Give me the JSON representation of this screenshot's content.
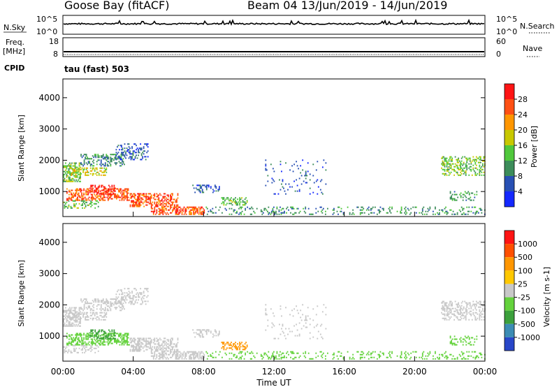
{
  "header": {
    "station": "Goose Bay (fitACF)",
    "beam_date": "Beam 04  13/Jun/2019 - 14/Jun/2019"
  },
  "summary": {
    "nsky_label": "N.Sky",
    "nsky_ticks": [
      "10^5",
      "10^0"
    ],
    "nsearch_label": "N.Search",
    "nsearch_ticks": [
      "10^5",
      "10^0"
    ],
    "freq_label_1": "Freq.",
    "freq_label_2": "[MHz]",
    "freq_ticks": [
      "18",
      "8"
    ],
    "nave_label": "Nave",
    "nave_ticks": [
      "60",
      "0"
    ],
    "cpid_label": "CPID",
    "cpid_value": "tau (fast) 503"
  },
  "chart_data": [
    {
      "type": "heatmap",
      "name": "power",
      "ylabel": "Slant Range [km]",
      "yticks": [
        "1000",
        "2000",
        "3000",
        "4000"
      ],
      "ylim": [
        200,
        4600
      ],
      "xlim_hours": [
        0,
        24
      ],
      "colorbar_label": "Power [dB]",
      "colorbar_ticks": [
        "4",
        "8",
        "12",
        "16",
        "20",
        "24",
        "28"
      ],
      "colorbar_colors": [
        "#1428ff",
        "#2850b4",
        "#3c8c5a",
        "#50c83c",
        "#c8c800",
        "#ff9600",
        "#ff5014",
        "#ff1414"
      ]
    },
    {
      "type": "heatmap",
      "name": "velocity",
      "ylabel": "Slant Range [km]",
      "yticks": [
        "1000",
        "2000",
        "3000",
        "4000"
      ],
      "ylim": [
        200,
        4600
      ],
      "xlim_hours": [
        0,
        24
      ],
      "xlabel": "Time UT",
      "xticks": [
        "00:00",
        "04:00",
        "08:00",
        "12:00",
        "16:00",
        "20:00",
        "00:00"
      ],
      "colorbar_label": "Velocity [m s-1]",
      "colorbar_ticks": [
        "1000",
        "500",
        "100",
        "25",
        "-25",
        "-100",
        "-500",
        "-1000"
      ],
      "colorbar_colors": [
        "#2846c8",
        "#3c8cb4",
        "#3ca03c",
        "#64d23c",
        "#c8c8c8",
        "#ffc800",
        "#ff9600",
        "#ff5000",
        "#ff1414"
      ]
    }
  ]
}
